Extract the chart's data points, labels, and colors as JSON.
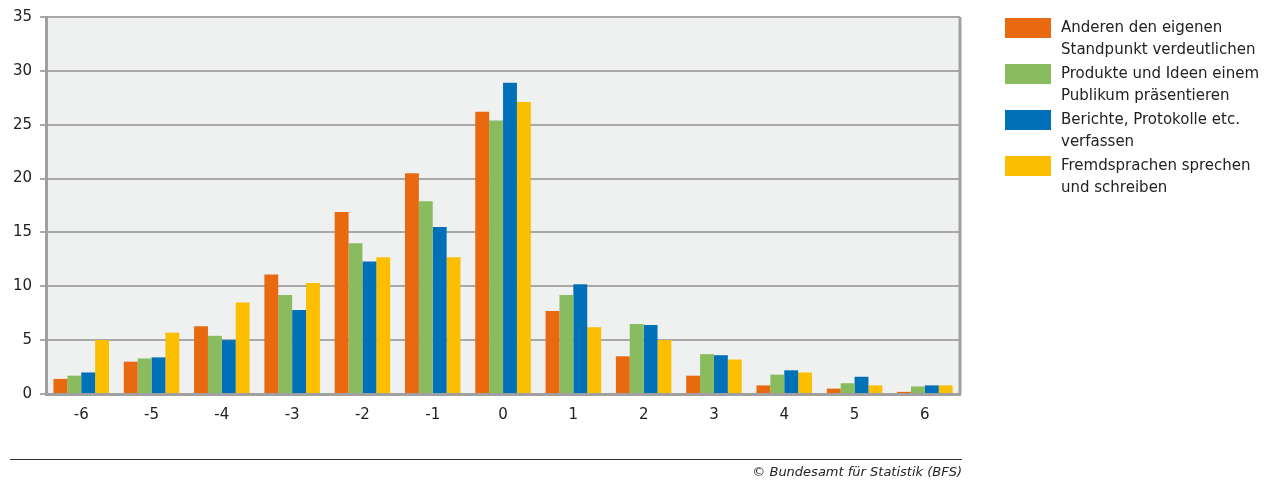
{
  "chart_data": {
    "type": "bar",
    "categories": [
      "-6",
      "-5",
      "-4",
      "-3",
      "-2",
      "-1",
      "0",
      "1",
      "2",
      "3",
      "4",
      "5",
      "6"
    ],
    "series": [
      {
        "name": "Anderen den eigenen Standpunkt verdeutlichen",
        "color": "#e8690f",
        "values": [
          1.4,
          3.0,
          6.3,
          11.1,
          16.9,
          20.5,
          26.2,
          7.7,
          3.5,
          1.7,
          0.8,
          0.5,
          0.2
        ]
      },
      {
        "name": "Produkte und Ideen einem Publikum präsentieren",
        "color": "#88bc5f",
        "values": [
          1.7,
          3.3,
          5.4,
          9.2,
          14.0,
          17.9,
          25.4,
          9.2,
          6.5,
          3.7,
          1.8,
          1.0,
          0.7
        ]
      },
      {
        "name": "Berichte, Protokolle etc. verfassen",
        "color": "#0070b8",
        "values": [
          2.0,
          3.4,
          5.0,
          7.8,
          12.3,
          15.5,
          28.9,
          10.2,
          6.4,
          3.6,
          2.2,
          1.6,
          0.8
        ]
      },
      {
        "name": "Fremdsprachen sprechen und schreiben",
        "color": "#fbbe00",
        "values": [
          5.0,
          5.7,
          8.5,
          10.3,
          12.7,
          12.7,
          27.1,
          6.2,
          5.0,
          3.2,
          2.0,
          0.8,
          0.8
        ]
      }
    ],
    "ylim": [
      0,
      35
    ],
    "yticks": [
      0,
      5,
      10,
      15,
      20,
      25,
      30,
      35
    ],
    "grid": "y",
    "legend": "right",
    "annotations": [
      "© Bundesamt für Statistik (BFS)"
    ]
  }
}
